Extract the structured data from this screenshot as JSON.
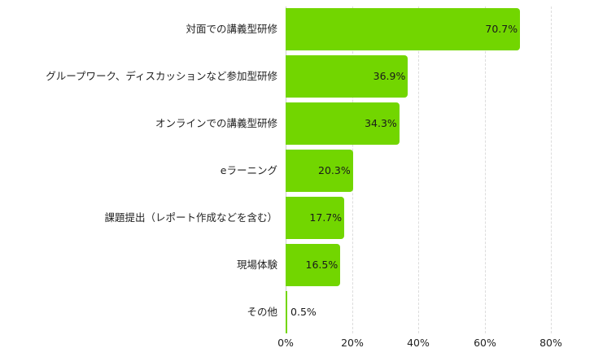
{
  "chart_data": {
    "type": "bar",
    "orientation": "horizontal",
    "title": "",
    "xlabel": "",
    "ylabel": "",
    "categories": [
      "対面での講義型研修",
      "グループワーク、ディスカッションなど参加型研修",
      "オンラインでの講義型研修",
      "eラーニング",
      "課題提出（レポート作成などを含む）",
      "現場体験",
      "その他"
    ],
    "values": [
      70.7,
      36.9,
      34.3,
      20.3,
      17.7,
      16.5,
      0.5
    ],
    "value_labels": [
      "70.7%",
      "36.9%",
      "34.3%",
      "20.3%",
      "17.7%",
      "16.5%",
      "0.5%"
    ],
    "xlim": [
      0,
      80
    ],
    "x_ticks": [
      "0%",
      "20%",
      "40%",
      "60%",
      "80%"
    ],
    "grid": true,
    "legend": null,
    "bar_color": "#72d600"
  }
}
